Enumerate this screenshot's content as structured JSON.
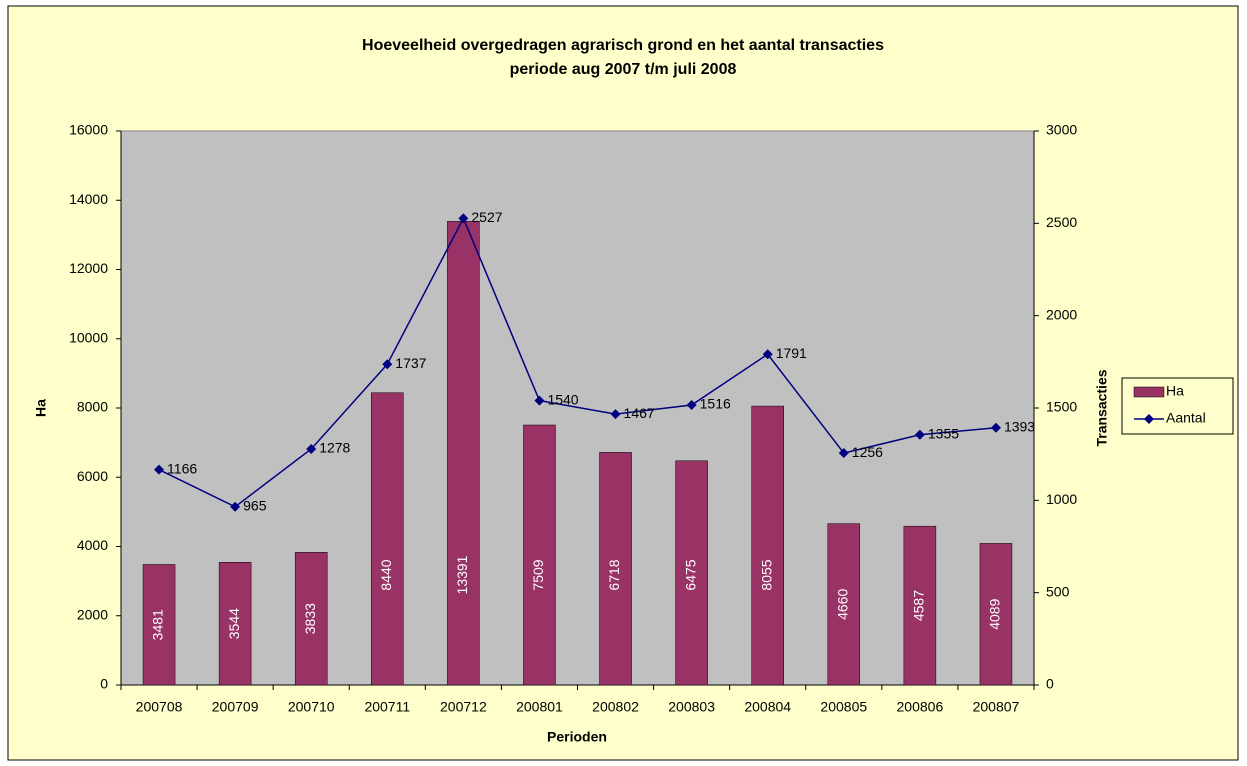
{
  "chart_data": {
    "type": "combo",
    "title": "Hoeveelheid overgedragen agrarisch grond en het aantal transacties",
    "subtitle": "periode aug 2007 t/m juli 2008",
    "x_label": "Perioden",
    "y_label": "Ha",
    "y2_label": "Transacties",
    "categories": [
      "200708",
      "200709",
      "200710",
      "200711",
      "200712",
      "200801",
      "200802",
      "200803",
      "200804",
      "200805",
      "200806",
      "200807"
    ],
    "series": [
      {
        "name": "Ha",
        "type": "bar",
        "color": "#993366",
        "values": [
          3481,
          3544,
          3833,
          8440,
          13391,
          7509,
          6718,
          6475,
          8055,
          4660,
          4587,
          4089
        ]
      },
      {
        "name": "Aantal",
        "type": "line",
        "axis": "y2",
        "color": "#000080",
        "values": [
          1166,
          965,
          1278,
          1737,
          2527,
          1540,
          1467,
          1516,
          1791,
          1256,
          1355,
          1393
        ]
      }
    ],
    "ylim": [
      0,
      16000
    ],
    "yticks": [
      0,
      2000,
      4000,
      6000,
      8000,
      10000,
      12000,
      14000,
      16000
    ],
    "y2lim": [
      0,
      3000
    ],
    "y2ticks": [
      0,
      500,
      1000,
      1500,
      2000,
      2500,
      3000
    ],
    "legend": "right"
  }
}
